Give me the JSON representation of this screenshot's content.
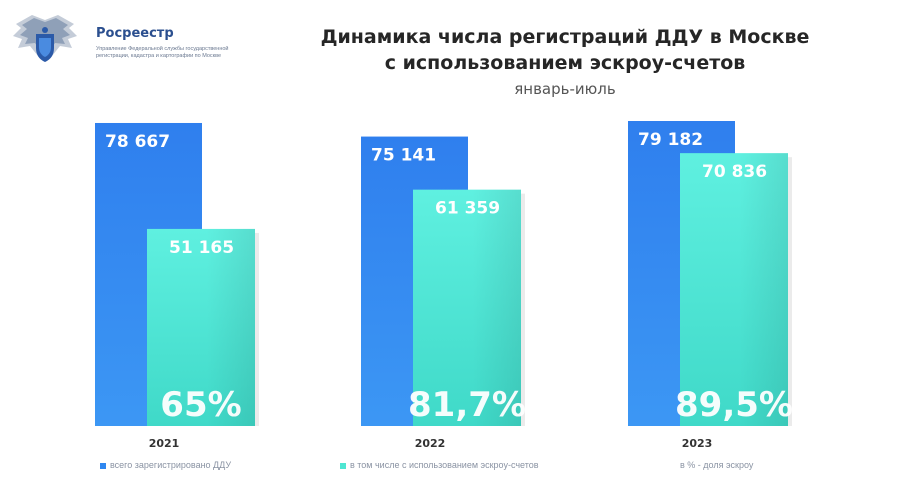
{
  "header": {
    "org_name": "Росреестр",
    "org_description": "Управление Федеральной службы государственной регистрации, кадастра и картографии по Москве",
    "title_line1": "Динамика числа регистраций ДДУ в Москве",
    "title_line2": "с использованием эскроу-счетов",
    "subtitle": "январь-июль"
  },
  "colors": {
    "total": "#2f87f0",
    "escrow": "#4ee6d2",
    "label_text": "#ffffff",
    "year_text": "#333333"
  },
  "chart_data": {
    "type": "bar",
    "title": "Динамика числа регистраций ДДУ в Москве с использованием эскроу-счетов",
    "subtitle": "январь-июль",
    "categories": [
      "2021",
      "2022",
      "2023"
    ],
    "series": [
      {
        "name": "всего зарегистрировано ДДУ",
        "values": [
          78667,
          75141,
          79182
        ],
        "value_labels": [
          "78 667",
          "75 141",
          "79 182"
        ]
      },
      {
        "name": "в том числе с использованием эскроу-счетов",
        "values": [
          51165,
          61359,
          70836
        ],
        "value_labels": [
          "51 165",
          "61 359",
          "70 836"
        ]
      }
    ],
    "shares": [
      "65%",
      "81,7%",
      "89,5%"
    ],
    "legend": [
      {
        "label": "всего зарегистрировано ДДУ",
        "color": "#2f87f0"
      },
      {
        "label": "в том числе с использованием эскроу-счетов",
        "color": "#4ee6d2"
      },
      {
        "label": "в % - доля эскроу",
        "color": ""
      }
    ],
    "legend_position": "bottom",
    "grid": false,
    "ylim": [
      0,
      80000
    ]
  }
}
